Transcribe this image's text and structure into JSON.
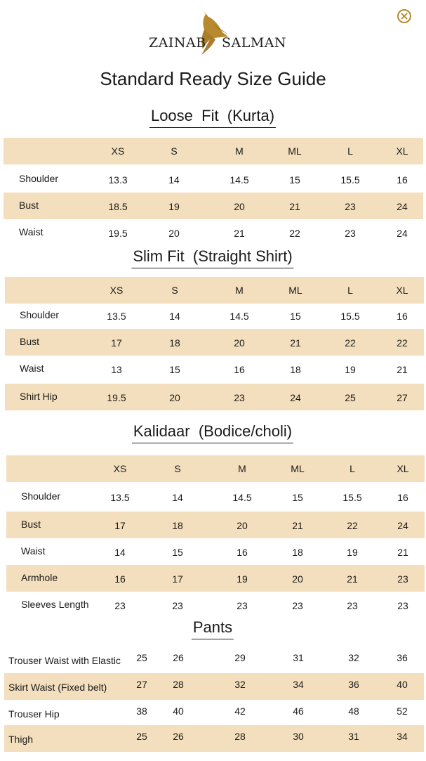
{
  "brand": {
    "name_left": "ZAINAB",
    "name_right": "SALMAN",
    "logo": "bird-logo",
    "accent": "#b8892e"
  },
  "close_icon": "close-circle-icon",
  "title": "Standard Ready Size Guide",
  "band_color": "#f3dfbd",
  "sizes": [
    "XS",
    "S",
    "M",
    "ML",
    "L",
    "XL"
  ],
  "tables": [
    {
      "title": "Loose  Fit  (Kurta)",
      "has_header": true,
      "rows": [
        {
          "label": "Shoulder",
          "values": [
            "13.3",
            "14",
            "14.5",
            "15",
            "15.5",
            "16"
          ]
        },
        {
          "label": "Bust",
          "values": [
            "18.5",
            "19",
            "20",
            "21",
            "23",
            "24"
          ]
        },
        {
          "label": "Waist",
          "values": [
            "19.5",
            "20",
            "21",
            "22",
            "23",
            "24"
          ]
        }
      ]
    },
    {
      "title": "Slim Fit  (Straight Shirt)",
      "has_header": true,
      "rows": [
        {
          "label": "Shoulder",
          "values": [
            "13.5",
            "14",
            "14.5",
            "15",
            "15.5",
            "16"
          ]
        },
        {
          "label": "Bust",
          "values": [
            "17",
            "18",
            "20",
            "21",
            "22",
            "22"
          ]
        },
        {
          "label": "Waist",
          "values": [
            "13",
            "15",
            "16",
            "18",
            "19",
            "21"
          ]
        },
        {
          "label": "Shirt Hip",
          "values": [
            "19.5",
            "20",
            "23",
            "24",
            "25",
            "27"
          ]
        }
      ]
    },
    {
      "title": "Kalidaar  (Bodice/choli)",
      "has_header": true,
      "rows": [
        {
          "label": "Shoulder",
          "values": [
            "13.5",
            "14",
            "14.5",
            "15",
            "15.5",
            "16"
          ]
        },
        {
          "label": "Bust",
          "values": [
            "17",
            "18",
            "20",
            "21",
            "22",
            "24"
          ]
        },
        {
          "label": "Waist",
          "values": [
            "14",
            "15",
            "16",
            "18",
            "19",
            "21"
          ]
        },
        {
          "label": "Armhole",
          "values": [
            "16",
            "17",
            "19",
            "20",
            "21",
            "23"
          ]
        },
        {
          "label": "Sleeves Length",
          "values": [
            "23",
            "23",
            "23",
            "23",
            "23",
            "23"
          ]
        }
      ]
    },
    {
      "title": "Pants",
      "has_header": false,
      "rows": [
        {
          "label": "Trouser Waist with Elastic",
          "values": [
            "25",
            "26",
            "29",
            "31",
            "32",
            "36"
          ]
        },
        {
          "label": "Skirt Waist (Fixed belt)",
          "values": [
            "27",
            "28",
            "32",
            "34",
            "36",
            "40"
          ]
        },
        {
          "label": "Trouser Hip",
          "values": [
            "38",
            "40",
            "42",
            "46",
            "48",
            "52"
          ]
        },
        {
          "label": "Thigh",
          "values": [
            "25",
            "26",
            "28",
            "30",
            "31",
            "34"
          ]
        }
      ]
    }
  ]
}
